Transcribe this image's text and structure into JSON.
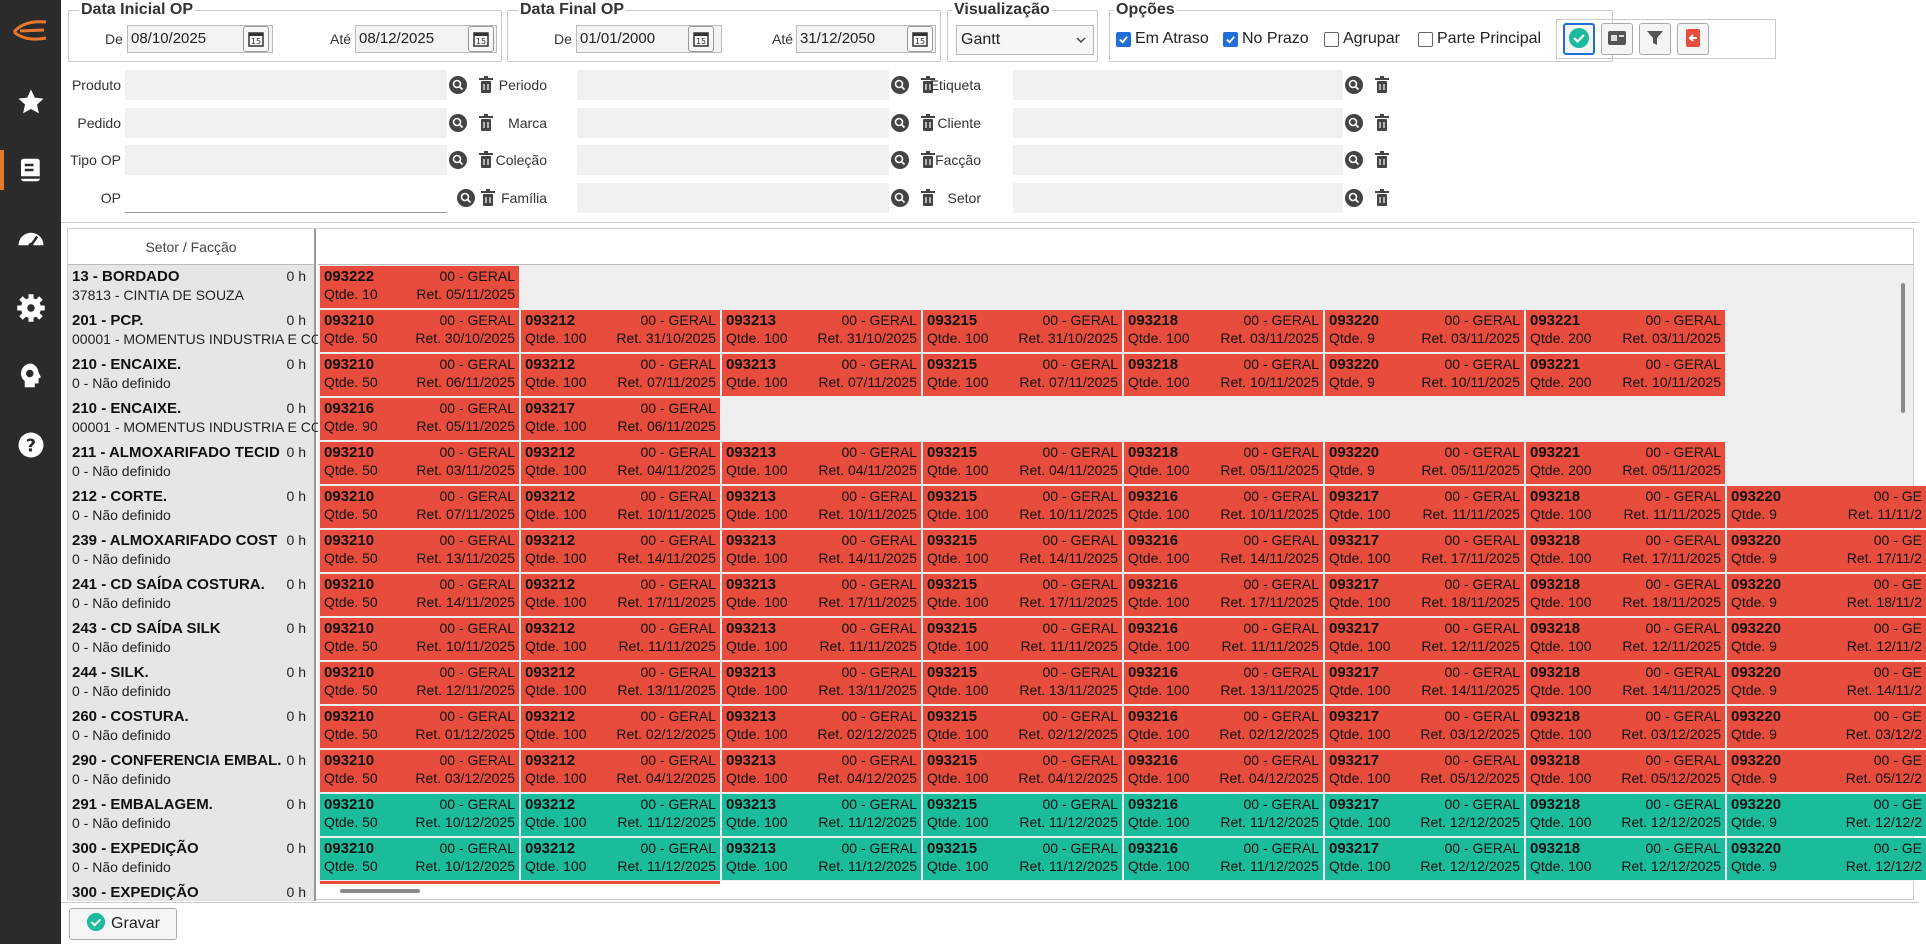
{
  "filters": {
    "data_inicial": {
      "title": "Data Inicial OP",
      "de_label": "De",
      "de_value": "08/10/2025",
      "ate_label": "Até",
      "ate_value": "08/12/2025"
    },
    "data_final": {
      "title": "Data Final OP",
      "de_label": "De",
      "de_value": "01/01/2000",
      "ate_label": "Até",
      "ate_value": "31/12/2050"
    },
    "visualizacao": {
      "title": "Visualização",
      "value": "Gantt"
    },
    "opcoes": {
      "title": "Opções",
      "items": [
        {
          "label": "Em Atraso",
          "checked": true
        },
        {
          "label": "No Prazo",
          "checked": true
        },
        {
          "label": "Agrupar",
          "checked": false
        },
        {
          "label": "Parte Principal",
          "checked": false
        }
      ]
    },
    "fields": {
      "col1": [
        "Produto",
        "Pedido",
        "Tipo OP",
        "OP"
      ],
      "col2": [
        "Periodo",
        "Marca",
        "Coleção",
        "Família"
      ],
      "col3": [
        "Etiqueta",
        "Cliente",
        "Facção",
        "Setor"
      ]
    }
  },
  "grid": {
    "header_label": "Setor / Facção",
    "rows": [
      {
        "name": "13 - BORDADO",
        "sub": "37813 -  CINTIA DE SOUZA",
        "hours": "0 h",
        "color": "red",
        "cards": [
          [
            "093222",
            "00 - GERAL",
            "Qtde. 10",
            "Ret. 05/11/2025"
          ]
        ]
      },
      {
        "name": "201 - PCP.",
        "sub": "00001 - MOMENTUS INDUSTRIA E CO",
        "hours": "0 h",
        "color": "red",
        "cards": [
          [
            "093210",
            "00 - GERAL",
            "Qtde. 50",
            "Ret. 30/10/2025"
          ],
          [
            "093212",
            "00 - GERAL",
            "Qtde. 100",
            "Ret. 31/10/2025"
          ],
          [
            "093213",
            "00 - GERAL",
            "Qtde. 100",
            "Ret. 31/10/2025"
          ],
          [
            "093215",
            "00 - GERAL",
            "Qtde. 100",
            "Ret. 31/10/2025"
          ],
          [
            "093218",
            "00 - GERAL",
            "Qtde. 100",
            "Ret. 03/11/2025"
          ],
          [
            "093220",
            "00 - GERAL",
            "Qtde. 9",
            "Ret. 03/11/2025"
          ],
          [
            "093221",
            "00 - GERAL",
            "Qtde. 200",
            "Ret. 03/11/2025"
          ]
        ]
      },
      {
        "name": "210 - ENCAIXE.",
        "sub": "0 - Não definido",
        "hours": "0 h",
        "color": "red",
        "cards": [
          [
            "093210",
            "00 - GERAL",
            "Qtde. 50",
            "Ret. 06/11/2025"
          ],
          [
            "093212",
            "00 - GERAL",
            "Qtde. 100",
            "Ret. 07/11/2025"
          ],
          [
            "093213",
            "00 - GERAL",
            "Qtde. 100",
            "Ret. 07/11/2025"
          ],
          [
            "093215",
            "00 - GERAL",
            "Qtde. 100",
            "Ret. 07/11/2025"
          ],
          [
            "093218",
            "00 - GERAL",
            "Qtde. 100",
            "Ret. 10/11/2025"
          ],
          [
            "093220",
            "00 - GERAL",
            "Qtde. 9",
            "Ret. 10/11/2025"
          ],
          [
            "093221",
            "00 - GERAL",
            "Qtde. 200",
            "Ret. 10/11/2025"
          ]
        ]
      },
      {
        "name": "210 - ENCAIXE.",
        "sub": "00001 - MOMENTUS INDUSTRIA E CO",
        "hours": "0 h",
        "color": "red",
        "cards": [
          [
            "093216",
            "00 - GERAL",
            "Qtde. 90",
            "Ret. 05/11/2025"
          ],
          [
            "093217",
            "00 - GERAL",
            "Qtde. 100",
            "Ret. 06/11/2025"
          ]
        ]
      },
      {
        "name": "211 - ALMOXARIFADO TECID",
        "sub": "0 - Não definido",
        "hours": "0 h",
        "color": "red",
        "cards": [
          [
            "093210",
            "00 - GERAL",
            "Qtde. 50",
            "Ret. 03/11/2025"
          ],
          [
            "093212",
            "00 - GERAL",
            "Qtde. 100",
            "Ret. 04/11/2025"
          ],
          [
            "093213",
            "00 - GERAL",
            "Qtde. 100",
            "Ret. 04/11/2025"
          ],
          [
            "093215",
            "00 - GERAL",
            "Qtde. 100",
            "Ret. 04/11/2025"
          ],
          [
            "093218",
            "00 - GERAL",
            "Qtde. 100",
            "Ret. 05/11/2025"
          ],
          [
            "093220",
            "00 - GERAL",
            "Qtde. 9",
            "Ret. 05/11/2025"
          ],
          [
            "093221",
            "00 - GERAL",
            "Qtde. 200",
            "Ret. 05/11/2025"
          ]
        ]
      },
      {
        "name": "212 - CORTE.",
        "sub": "0 - Não definido",
        "hours": "0 h",
        "color": "red",
        "cards": [
          [
            "093210",
            "00 - GERAL",
            "Qtde. 50",
            "Ret. 07/11/2025"
          ],
          [
            "093212",
            "00 - GERAL",
            "Qtde. 100",
            "Ret. 10/11/2025"
          ],
          [
            "093213",
            "00 - GERAL",
            "Qtde. 100",
            "Ret. 10/11/2025"
          ],
          [
            "093215",
            "00 - GERAL",
            "Qtde. 100",
            "Ret. 10/11/2025"
          ],
          [
            "093216",
            "00 - GERAL",
            "Qtde. 100",
            "Ret. 10/11/2025"
          ],
          [
            "093217",
            "00 - GERAL",
            "Qtde. 100",
            "Ret. 11/11/2025"
          ],
          [
            "093218",
            "00 - GERAL",
            "Qtde. 100",
            "Ret. 11/11/2025"
          ],
          [
            "093220",
            "00 - GE",
            "Qtde. 9",
            "Ret. 11/11/2"
          ]
        ]
      },
      {
        "name": "239 - ALMOXARIFADO COST",
        "sub": "0 - Não definido",
        "hours": "0 h",
        "color": "red",
        "cards": [
          [
            "093210",
            "00 - GERAL",
            "Qtde. 50",
            "Ret. 13/11/2025"
          ],
          [
            "093212",
            "00 - GERAL",
            "Qtde. 100",
            "Ret. 14/11/2025"
          ],
          [
            "093213",
            "00 - GERAL",
            "Qtde. 100",
            "Ret. 14/11/2025"
          ],
          [
            "093215",
            "00 - GERAL",
            "Qtde. 100",
            "Ret. 14/11/2025"
          ],
          [
            "093216",
            "00 - GERAL",
            "Qtde. 100",
            "Ret. 14/11/2025"
          ],
          [
            "093217",
            "00 - GERAL",
            "Qtde. 100",
            "Ret. 17/11/2025"
          ],
          [
            "093218",
            "00 - GERAL",
            "Qtde. 100",
            "Ret. 17/11/2025"
          ],
          [
            "093220",
            "00 - GE",
            "Qtde. 9",
            "Ret. 17/11/2"
          ]
        ]
      },
      {
        "name": "241 - CD SAÍDA COSTURA.",
        "sub": "0 - Não definido",
        "hours": "0 h",
        "color": "red",
        "cards": [
          [
            "093210",
            "00 - GERAL",
            "Qtde. 50",
            "Ret. 14/11/2025"
          ],
          [
            "093212",
            "00 - GERAL",
            "Qtde. 100",
            "Ret. 17/11/2025"
          ],
          [
            "093213",
            "00 - GERAL",
            "Qtde. 100",
            "Ret. 17/11/2025"
          ],
          [
            "093215",
            "00 - GERAL",
            "Qtde. 100",
            "Ret. 17/11/2025"
          ],
          [
            "093216",
            "00 - GERAL",
            "Qtde. 100",
            "Ret. 17/11/2025"
          ],
          [
            "093217",
            "00 - GERAL",
            "Qtde. 100",
            "Ret. 18/11/2025"
          ],
          [
            "093218",
            "00 - GERAL",
            "Qtde. 100",
            "Ret. 18/11/2025"
          ],
          [
            "093220",
            "00 - GE",
            "Qtde. 9",
            "Ret. 18/11/2"
          ]
        ]
      },
      {
        "name": "243 - CD SAÍDA SILK",
        "sub": "0 - Não definido",
        "hours": "0 h",
        "color": "red",
        "cards": [
          [
            "093210",
            "00 - GERAL",
            "Qtde. 50",
            "Ret. 10/11/2025"
          ],
          [
            "093212",
            "00 - GERAL",
            "Qtde. 100",
            "Ret. 11/11/2025"
          ],
          [
            "093213",
            "00 - GERAL",
            "Qtde. 100",
            "Ret. 11/11/2025"
          ],
          [
            "093215",
            "00 - GERAL",
            "Qtde. 100",
            "Ret. 11/11/2025"
          ],
          [
            "093216",
            "00 - GERAL",
            "Qtde. 100",
            "Ret. 11/11/2025"
          ],
          [
            "093217",
            "00 - GERAL",
            "Qtde. 100",
            "Ret. 12/11/2025"
          ],
          [
            "093218",
            "00 - GERAL",
            "Qtde. 100",
            "Ret. 12/11/2025"
          ],
          [
            "093220",
            "00 - GE",
            "Qtde. 9",
            "Ret. 12/11/2"
          ]
        ]
      },
      {
        "name": "244 - SILK.",
        "sub": "0 - Não definido",
        "hours": "0 h",
        "color": "red",
        "cards": [
          [
            "093210",
            "00 - GERAL",
            "Qtde. 50",
            "Ret. 12/11/2025"
          ],
          [
            "093212",
            "00 - GERAL",
            "Qtde. 100",
            "Ret. 13/11/2025"
          ],
          [
            "093213",
            "00 - GERAL",
            "Qtde. 100",
            "Ret. 13/11/2025"
          ],
          [
            "093215",
            "00 - GERAL",
            "Qtde. 100",
            "Ret. 13/11/2025"
          ],
          [
            "093216",
            "00 - GERAL",
            "Qtde. 100",
            "Ret. 13/11/2025"
          ],
          [
            "093217",
            "00 - GERAL",
            "Qtde. 100",
            "Ret. 14/11/2025"
          ],
          [
            "093218",
            "00 - GERAL",
            "Qtde. 100",
            "Ret. 14/11/2025"
          ],
          [
            "093220",
            "00 - GE",
            "Qtde. 9",
            "Ret. 14/11/2"
          ]
        ]
      },
      {
        "name": "260 - COSTURA.",
        "sub": "0 - Não definido",
        "hours": "0 h",
        "color": "red",
        "cards": [
          [
            "093210",
            "00 - GERAL",
            "Qtde. 50",
            "Ret. 01/12/2025"
          ],
          [
            "093212",
            "00 - GERAL",
            "Qtde. 100",
            "Ret. 02/12/2025"
          ],
          [
            "093213",
            "00 - GERAL",
            "Qtde. 100",
            "Ret. 02/12/2025"
          ],
          [
            "093215",
            "00 - GERAL",
            "Qtde. 100",
            "Ret. 02/12/2025"
          ],
          [
            "093216",
            "00 - GERAL",
            "Qtde. 100",
            "Ret. 02/12/2025"
          ],
          [
            "093217",
            "00 - GERAL",
            "Qtde. 100",
            "Ret. 03/12/2025"
          ],
          [
            "093218",
            "00 - GERAL",
            "Qtde. 100",
            "Ret. 03/12/2025"
          ],
          [
            "093220",
            "00 - GE",
            "Qtde. 9",
            "Ret. 03/12/2"
          ]
        ]
      },
      {
        "name": "290 - CONFERENCIA EMBAL.",
        "sub": "0 - Não definido",
        "hours": "0 h",
        "color": "red",
        "cards": [
          [
            "093210",
            "00 - GERAL",
            "Qtde. 50",
            "Ret. 03/12/2025"
          ],
          [
            "093212",
            "00 - GERAL",
            "Qtde. 100",
            "Ret. 04/12/2025"
          ],
          [
            "093213",
            "00 - GERAL",
            "Qtde. 100",
            "Ret. 04/12/2025"
          ],
          [
            "093215",
            "00 - GERAL",
            "Qtde. 100",
            "Ret. 04/12/2025"
          ],
          [
            "093216",
            "00 - GERAL",
            "Qtde. 100",
            "Ret. 04/12/2025"
          ],
          [
            "093217",
            "00 - GERAL",
            "Qtde. 100",
            "Ret. 05/12/2025"
          ],
          [
            "093218",
            "00 - GERAL",
            "Qtde. 100",
            "Ret. 05/12/2025"
          ],
          [
            "093220",
            "00 - GE",
            "Qtde. 9",
            "Ret. 05/12/2"
          ]
        ]
      },
      {
        "name": "291 - EMBALAGEM.",
        "sub": "0 - Não definido",
        "hours": "0 h",
        "color": "green",
        "cards": [
          [
            "093210",
            "00 - GERAL",
            "Qtde. 50",
            "Ret. 10/12/2025"
          ],
          [
            "093212",
            "00 - GERAL",
            "Qtde. 100",
            "Ret. 11/12/2025"
          ],
          [
            "093213",
            "00 - GERAL",
            "Qtde. 100",
            "Ret. 11/12/2025"
          ],
          [
            "093215",
            "00 - GERAL",
            "Qtde. 100",
            "Ret. 11/12/2025"
          ],
          [
            "093216",
            "00 - GERAL",
            "Qtde. 100",
            "Ret. 11/12/2025"
          ],
          [
            "093217",
            "00 - GERAL",
            "Qtde. 100",
            "Ret. 12/12/2025"
          ],
          [
            "093218",
            "00 - GERAL",
            "Qtde. 100",
            "Ret. 12/12/2025"
          ],
          [
            "093220",
            "00 - GE",
            "Qtde. 9",
            "Ret. 12/12/2"
          ]
        ]
      },
      {
        "name": "300 - EXPEDIÇÃO",
        "sub": "0 - Não definido",
        "hours": "0 h",
        "color": "green",
        "cards": [
          [
            "093210",
            "00 - GERAL",
            "Qtde. 50",
            "Ret. 10/12/2025"
          ],
          [
            "093212",
            "00 - GERAL",
            "Qtde. 100",
            "Ret. 11/12/2025"
          ],
          [
            "093213",
            "00 - GERAL",
            "Qtde. 100",
            "Ret. 11/12/2025"
          ],
          [
            "093215",
            "00 - GERAL",
            "Qtde. 100",
            "Ret. 11/12/2025"
          ],
          [
            "093216",
            "00 - GERAL",
            "Qtde. 100",
            "Ret. 11/12/2025"
          ],
          [
            "093217",
            "00 - GERAL",
            "Qtde. 100",
            "Ret. 12/12/2025"
          ],
          [
            "093218",
            "00 - GERAL",
            "Qtde. 100",
            "Ret. 12/12/2025"
          ],
          [
            "093220",
            "00 - GE",
            "Qtde. 9",
            "Ret. 12/12/2"
          ]
        ]
      },
      {
        "name": "300 - EXPEDIÇÃO",
        "sub": "",
        "hours": "0 h",
        "color": "red",
        "cards": []
      }
    ]
  },
  "footer": {
    "save_label": "Gravar"
  },
  "colors": {
    "late": "#e84c3d",
    "ontime": "#1abc9c",
    "accent": "#e8772e",
    "sidebar": "#2b2b2b"
  }
}
